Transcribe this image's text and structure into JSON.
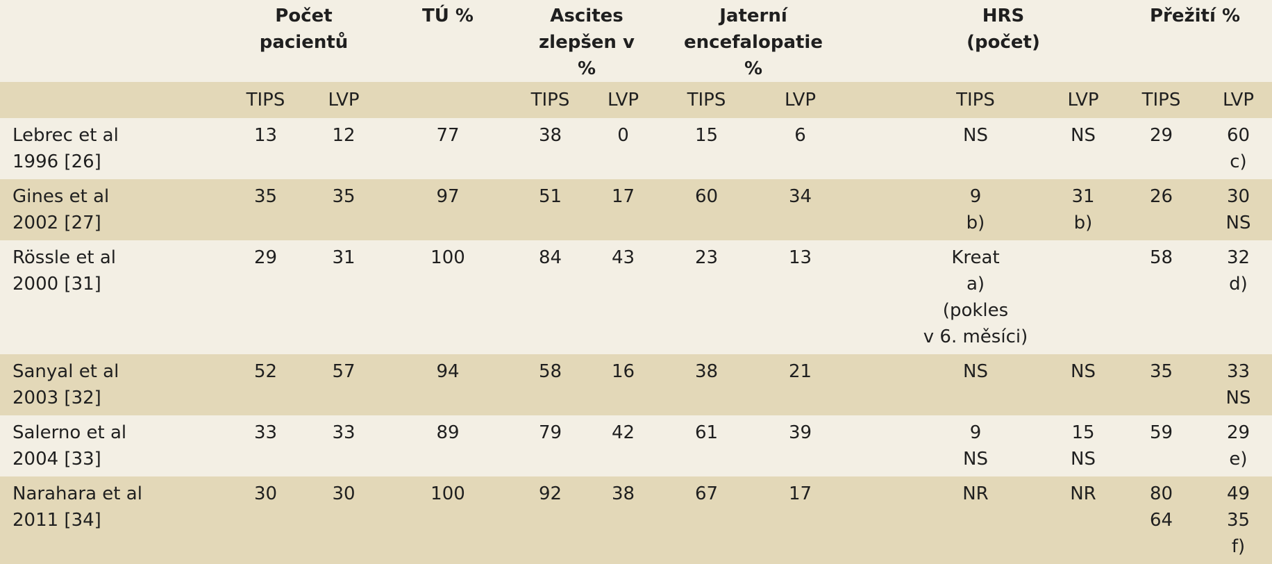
{
  "header": {
    "pocet": "Počet pacientů",
    "tu": "TÚ %",
    "ascites": "Ascites zlepšen v %",
    "jaterni": "Jaterní encefalopatie %",
    "hrs": "HRS (počet)",
    "preziti": "Přežití %"
  },
  "subheader": {
    "tips": "TIPS",
    "lvp": "LVP"
  },
  "rows": [
    {
      "study": [
        "Lebrec et al",
        "1996 [26]"
      ],
      "pocet_tips": "13",
      "pocet_lvp": "12",
      "tu": "77",
      "asc_tips": "38",
      "asc_lvp": "0",
      "je_tips": "15",
      "je_lvp": "6",
      "hrs_tips": [
        "NS"
      ],
      "hrs_lvp": [
        "NS"
      ],
      "surv_tips": [
        "29"
      ],
      "surv_lvp": [
        "60",
        "c)"
      ]
    },
    {
      "study": [
        "Gines et al",
        "2002 [27]"
      ],
      "pocet_tips": "35",
      "pocet_lvp": "35",
      "tu": "97",
      "asc_tips": "51",
      "asc_lvp": "17",
      "je_tips": "60",
      "je_lvp": "34",
      "hrs_tips": [
        "9",
        "b)"
      ],
      "hrs_lvp": [
        "31",
        "b)"
      ],
      "surv_tips": [
        "26"
      ],
      "surv_lvp": [
        "30",
        "NS"
      ]
    },
    {
      "study": [
        "Rössle et al",
        "2000 [31]"
      ],
      "pocet_tips": "29",
      "pocet_lvp": "31",
      "tu": "100",
      "asc_tips": "84",
      "asc_lvp": "43",
      "je_tips": "23",
      "je_lvp": "13",
      "hrs_tips": [
        "Kreat",
        "a)",
        "(pokles",
        "v 6. měsíci)"
      ],
      "hrs_lvp": [
        ""
      ],
      "surv_tips": [
        "58"
      ],
      "surv_lvp": [
        "32",
        "d)"
      ]
    },
    {
      "study": [
        "Sanyal et al",
        "2003 [32]"
      ],
      "pocet_tips": "52",
      "pocet_lvp": "57",
      "tu": "94",
      "asc_tips": "58",
      "asc_lvp": "16",
      "je_tips": "38",
      "je_lvp": "21",
      "hrs_tips": [
        "NS"
      ],
      "hrs_lvp": [
        "NS"
      ],
      "surv_tips": [
        "35"
      ],
      "surv_lvp": [
        "33",
        "NS"
      ]
    },
    {
      "study": [
        "Salerno et al",
        "2004 [33]"
      ],
      "pocet_tips": "33",
      "pocet_lvp": "33",
      "tu": "89",
      "asc_tips": "79",
      "asc_lvp": "42",
      "je_tips": "61",
      "je_lvp": "39",
      "hrs_tips": [
        "9",
        "NS"
      ],
      "hrs_lvp": [
        "15",
        "NS"
      ],
      "surv_tips": [
        "59"
      ],
      "surv_lvp": [
        "29",
        "e)"
      ]
    },
    {
      "study": [
        "Narahara et al",
        "2011 [34]"
      ],
      "pocet_tips": "30",
      "pocet_lvp": "30",
      "tu": "100",
      "asc_tips": "92",
      "asc_lvp": "38",
      "je_tips": "67",
      "je_lvp": "17",
      "hrs_tips": [
        "NR"
      ],
      "hrs_lvp": [
        "NR"
      ],
      "surv_tips": [
        "80",
        "64"
      ],
      "surv_lvp": [
        "49",
        "35",
        "f)"
      ]
    }
  ]
}
